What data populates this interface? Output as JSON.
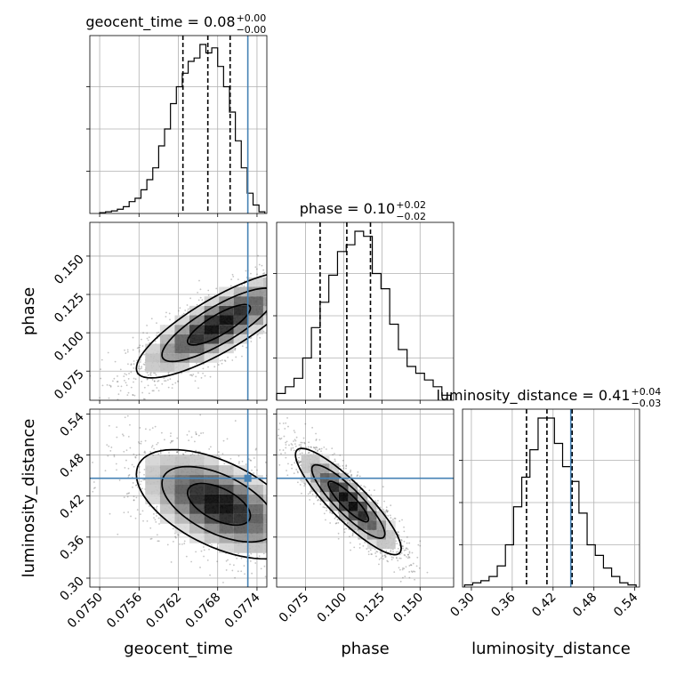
{
  "chart_data": {
    "type": "corner",
    "parameters": [
      "geocent_time",
      "phase",
      "luminosity_distance"
    ],
    "axis_labels": {
      "geocent_time": "geocent_time",
      "phase": "phase",
      "luminosity_distance": "luminosity_distance"
    },
    "ranges": {
      "geocent_time": [
        0.07485,
        0.07755
      ],
      "phase": [
        0.056,
        0.172
      ],
      "luminosity_distance": [
        0.287,
        0.547
      ]
    },
    "ticks": {
      "geocent_time": [
        "0.0750",
        "0.0756",
        "0.0762",
        "0.0768",
        "0.0774"
      ],
      "phase": [
        "0.075",
        "0.100",
        "0.125",
        "0.150"
      ],
      "luminosity_distance": [
        "0.30",
        "0.36",
        "0.42",
        "0.48",
        "0.54"
      ]
    },
    "truth": {
      "geocent_time": 0.07726,
      "phase": null,
      "luminosity_distance": 0.446
    },
    "truth_color": "#4682b4",
    "titles": {
      "geocent_time": {
        "prefix": "geocent_time = ",
        "value": "0.08",
        "plus": "+0.00",
        "minus": "−0.00"
      },
      "phase": {
        "prefix": "phase = ",
        "value": "0.10",
        "plus": "+0.02",
        "minus": "−0.02"
      },
      "luminosity_distance": {
        "prefix": "luminosity_distance = ",
        "value": "0.41",
        "plus": "+0.04",
        "minus": "−0.03"
      }
    },
    "quantiles": {
      "geocent_time": [
        0.07627,
        0.07665,
        0.07699
      ],
      "phase": [
        0.0845,
        0.102,
        0.1175
      ],
      "luminosity_distance": [
        0.381,
        0.411,
        0.448
      ]
    },
    "histograms": {
      "geocent_time": {
        "edges": [
          0.075,
          0.07509,
          0.07518,
          0.07527,
          0.07536,
          0.07545,
          0.07554,
          0.07563,
          0.07572,
          0.07581,
          0.0759,
          0.07599,
          0.07608,
          0.07617,
          0.07626,
          0.07635,
          0.07644,
          0.07653,
          0.07662,
          0.07671,
          0.0768,
          0.07689,
          0.07698,
          0.07707,
          0.07716,
          0.07725,
          0.07734,
          0.07743,
          0.07752
        ],
        "counts": [
          0.5,
          1,
          1.5,
          2.5,
          4,
          7,
          9,
          14,
          20,
          27,
          40,
          50,
          65,
          75,
          83,
          90,
          92,
          100,
          95,
          98,
          87,
          75,
          60,
          43,
          27,
          12,
          5,
          1
        ]
      },
      "phase": {
        "edges": [
          0.056,
          0.0617,
          0.0674,
          0.0731,
          0.0788,
          0.0845,
          0.0902,
          0.0959,
          0.1016,
          0.1073,
          0.113,
          0.1187,
          0.1244,
          0.1301,
          0.1358,
          0.1415,
          0.1472,
          0.1529,
          0.1586,
          0.1643,
          0.17
        ],
        "counts": [
          4,
          8,
          13,
          25,
          43,
          58,
          74,
          88,
          92,
          100,
          97,
          75,
          66,
          45,
          30,
          20,
          16,
          12,
          8,
          3
        ]
      },
      "luminosity_distance": {
        "edges": [
          0.29,
          0.302,
          0.314,
          0.326,
          0.338,
          0.35,
          0.362,
          0.374,
          0.386,
          0.398,
          0.41,
          0.422,
          0.434,
          0.446,
          0.458,
          0.47,
          0.482,
          0.494,
          0.506,
          0.518,
          0.53,
          0.542
        ],
        "counts": [
          1,
          2,
          3,
          5,
          10,
          20,
          38,
          52,
          65,
          80,
          80,
          68,
          57,
          50,
          35,
          20,
          15,
          9,
          5,
          2,
          1
        ]
      }
    },
    "pairs": [
      {
        "x": "geocent_time",
        "y": "phase",
        "center": [
          0.07682,
          0.1052
        ],
        "spread": [
          0.0006,
          0.0165
        ],
        "rho": 0.82,
        "contours": [
          [
            0.077,
            0.1105
          ],
          [
            0.0763,
            0.1015
          ],
          [
            0.0769,
            0.1125
          ],
          [
            0.0769,
            0.1035
          ]
        ],
        "contour_levels": [
          1,
          2,
          3
        ]
      },
      {
        "x": "geocent_time",
        "y": "luminosity_distance",
        "center": [
          0.07682,
          0.408
        ],
        "spread": [
          0.0006,
          0.038
        ],
        "rho": -0.55,
        "contour_levels": [
          1,
          2,
          3
        ]
      },
      {
        "x": "phase",
        "y": "luminosity_distance",
        "center": [
          0.103,
          0.412
        ],
        "spread": [
          0.0165,
          0.037
        ],
        "rho": -0.88,
        "contour_levels": [
          1,
          2,
          3
        ]
      }
    ]
  }
}
